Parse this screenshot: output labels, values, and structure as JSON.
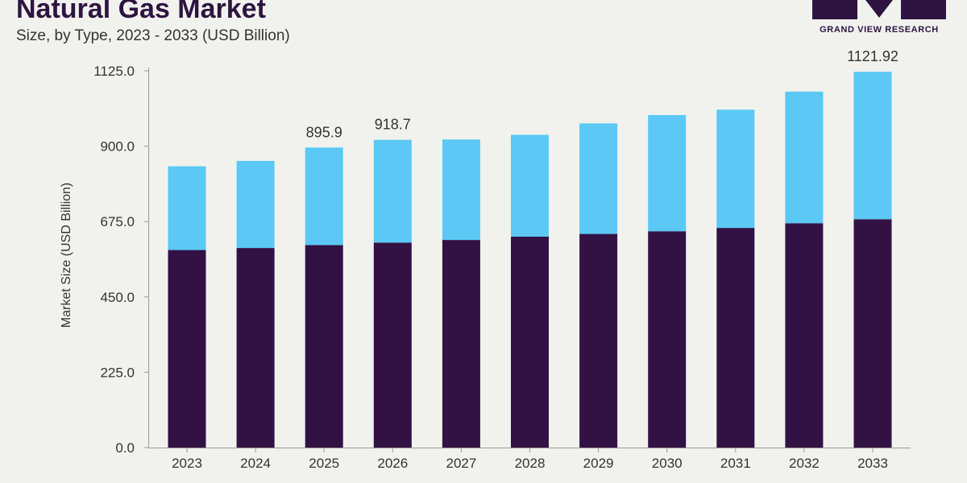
{
  "header": {
    "title": "Natural Gas Market",
    "subtitle": "Size, by Type, 2023 - 2033 (USD Billion)"
  },
  "logo": {
    "text": "GRAND VIEW RESEARCH",
    "color": "#2e1440"
  },
  "chart_data": {
    "type": "bar",
    "stacked": true,
    "categories": [
      "2023",
      "2024",
      "2025",
      "2026",
      "2027",
      "2028",
      "2029",
      "2030",
      "2031",
      "2032",
      "2033"
    ],
    "series": [
      {
        "color": "#321244",
        "values": [
          590,
          596,
          605,
          612,
          620,
          630,
          638,
          646,
          656,
          670,
          682
        ]
      },
      {
        "color": "#5bc8f5",
        "values": [
          250,
          260,
          291,
          307,
          300,
          304,
          330,
          347,
          353,
          393,
          440
        ]
      }
    ],
    "ylabel": "Market Size (USD Billion)",
    "ylim": [
      0,
      1125
    ],
    "yticks": [
      0.0,
      225.0,
      450.0,
      675.0,
      900.0,
      1125.0
    ],
    "ytick_labels": [
      "0.0",
      "225.0",
      "450.0",
      "675.0",
      "900.0",
      "1125.0"
    ],
    "data_labels": [
      {
        "category": "2025",
        "text": "895.9"
      },
      {
        "category": "2026",
        "text": "918.7"
      },
      {
        "category": "2033",
        "text": "1121.92"
      }
    ],
    "grid": false,
    "legend": false
  }
}
